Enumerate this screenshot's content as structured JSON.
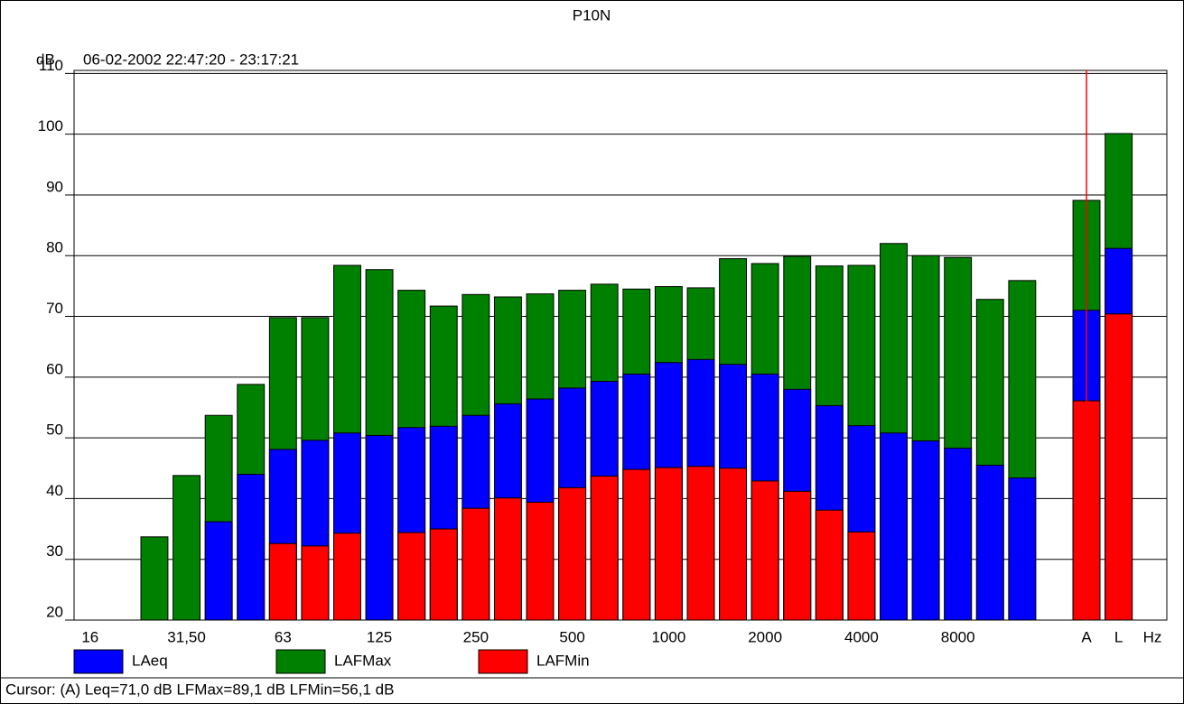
{
  "chart_data": {
    "type": "bar",
    "title": "P10N",
    "subtitle": "06-02-2002 22:47:20 - 23:17:21",
    "y_label": "dB",
    "x_label": "Hz",
    "categories": [
      "16",
      null,
      null,
      "31,50",
      null,
      null,
      "63",
      null,
      null,
      "125",
      null,
      null,
      "250",
      null,
      null,
      "500",
      null,
      null,
      "1000",
      null,
      null,
      "2000",
      null,
      null,
      "4000",
      null,
      null,
      "8000",
      null,
      null,
      null,
      "A",
      "L"
    ],
    "series": [
      {
        "name": "LAeq",
        "color": "#0000ff",
        "values": [
          null,
          null,
          null,
          null,
          36.2,
          44.0,
          48.1,
          49.6,
          50.8,
          50.4,
          51.7,
          51.9,
          53.7,
          55.6,
          56.4,
          58.2,
          59.3,
          60.5,
          62.4,
          62.9,
          62.1,
          60.5,
          58.0,
          55.3,
          52.0,
          50.8,
          49.5,
          48.3,
          45.5,
          43.4,
          null,
          71.0,
          81.2
        ]
      },
      {
        "name": "LAFMax",
        "color": "#008000",
        "values": [
          null,
          null,
          33.7,
          43.8,
          53.7,
          58.8,
          69.8,
          69.8,
          78.4,
          77.7,
          74.3,
          71.7,
          73.6,
          73.2,
          73.7,
          74.3,
          75.3,
          74.5,
          74.9,
          74.7,
          79.5,
          78.7,
          79.9,
          78.3,
          78.4,
          82.0,
          80.0,
          79.7,
          72.8,
          75.9,
          null,
          89.1,
          100.1
        ]
      },
      {
        "name": "LAFMin",
        "color": "#ff0000",
        "values": [
          null,
          null,
          null,
          null,
          null,
          null,
          32.6,
          32.2,
          34.3,
          null,
          34.4,
          35.0,
          38.4,
          40.1,
          39.4,
          41.8,
          43.7,
          44.8,
          45.1,
          45.3,
          45.0,
          42.9,
          41.2,
          38.1,
          34.5,
          null,
          null,
          null,
          null,
          null,
          null,
          56.1,
          70.4
        ]
      }
    ],
    "ylim": [
      20,
      110.5
    ],
    "yticks": [
      20,
      30,
      40,
      50,
      60,
      70,
      80,
      90,
      100,
      110
    ],
    "grid": true,
    "cursor_category": "A",
    "cursor_text": "Cursor: (A)  Leq=71,0 dB  LFMax=89,1 dB  LFMin=56,1 dB"
  }
}
